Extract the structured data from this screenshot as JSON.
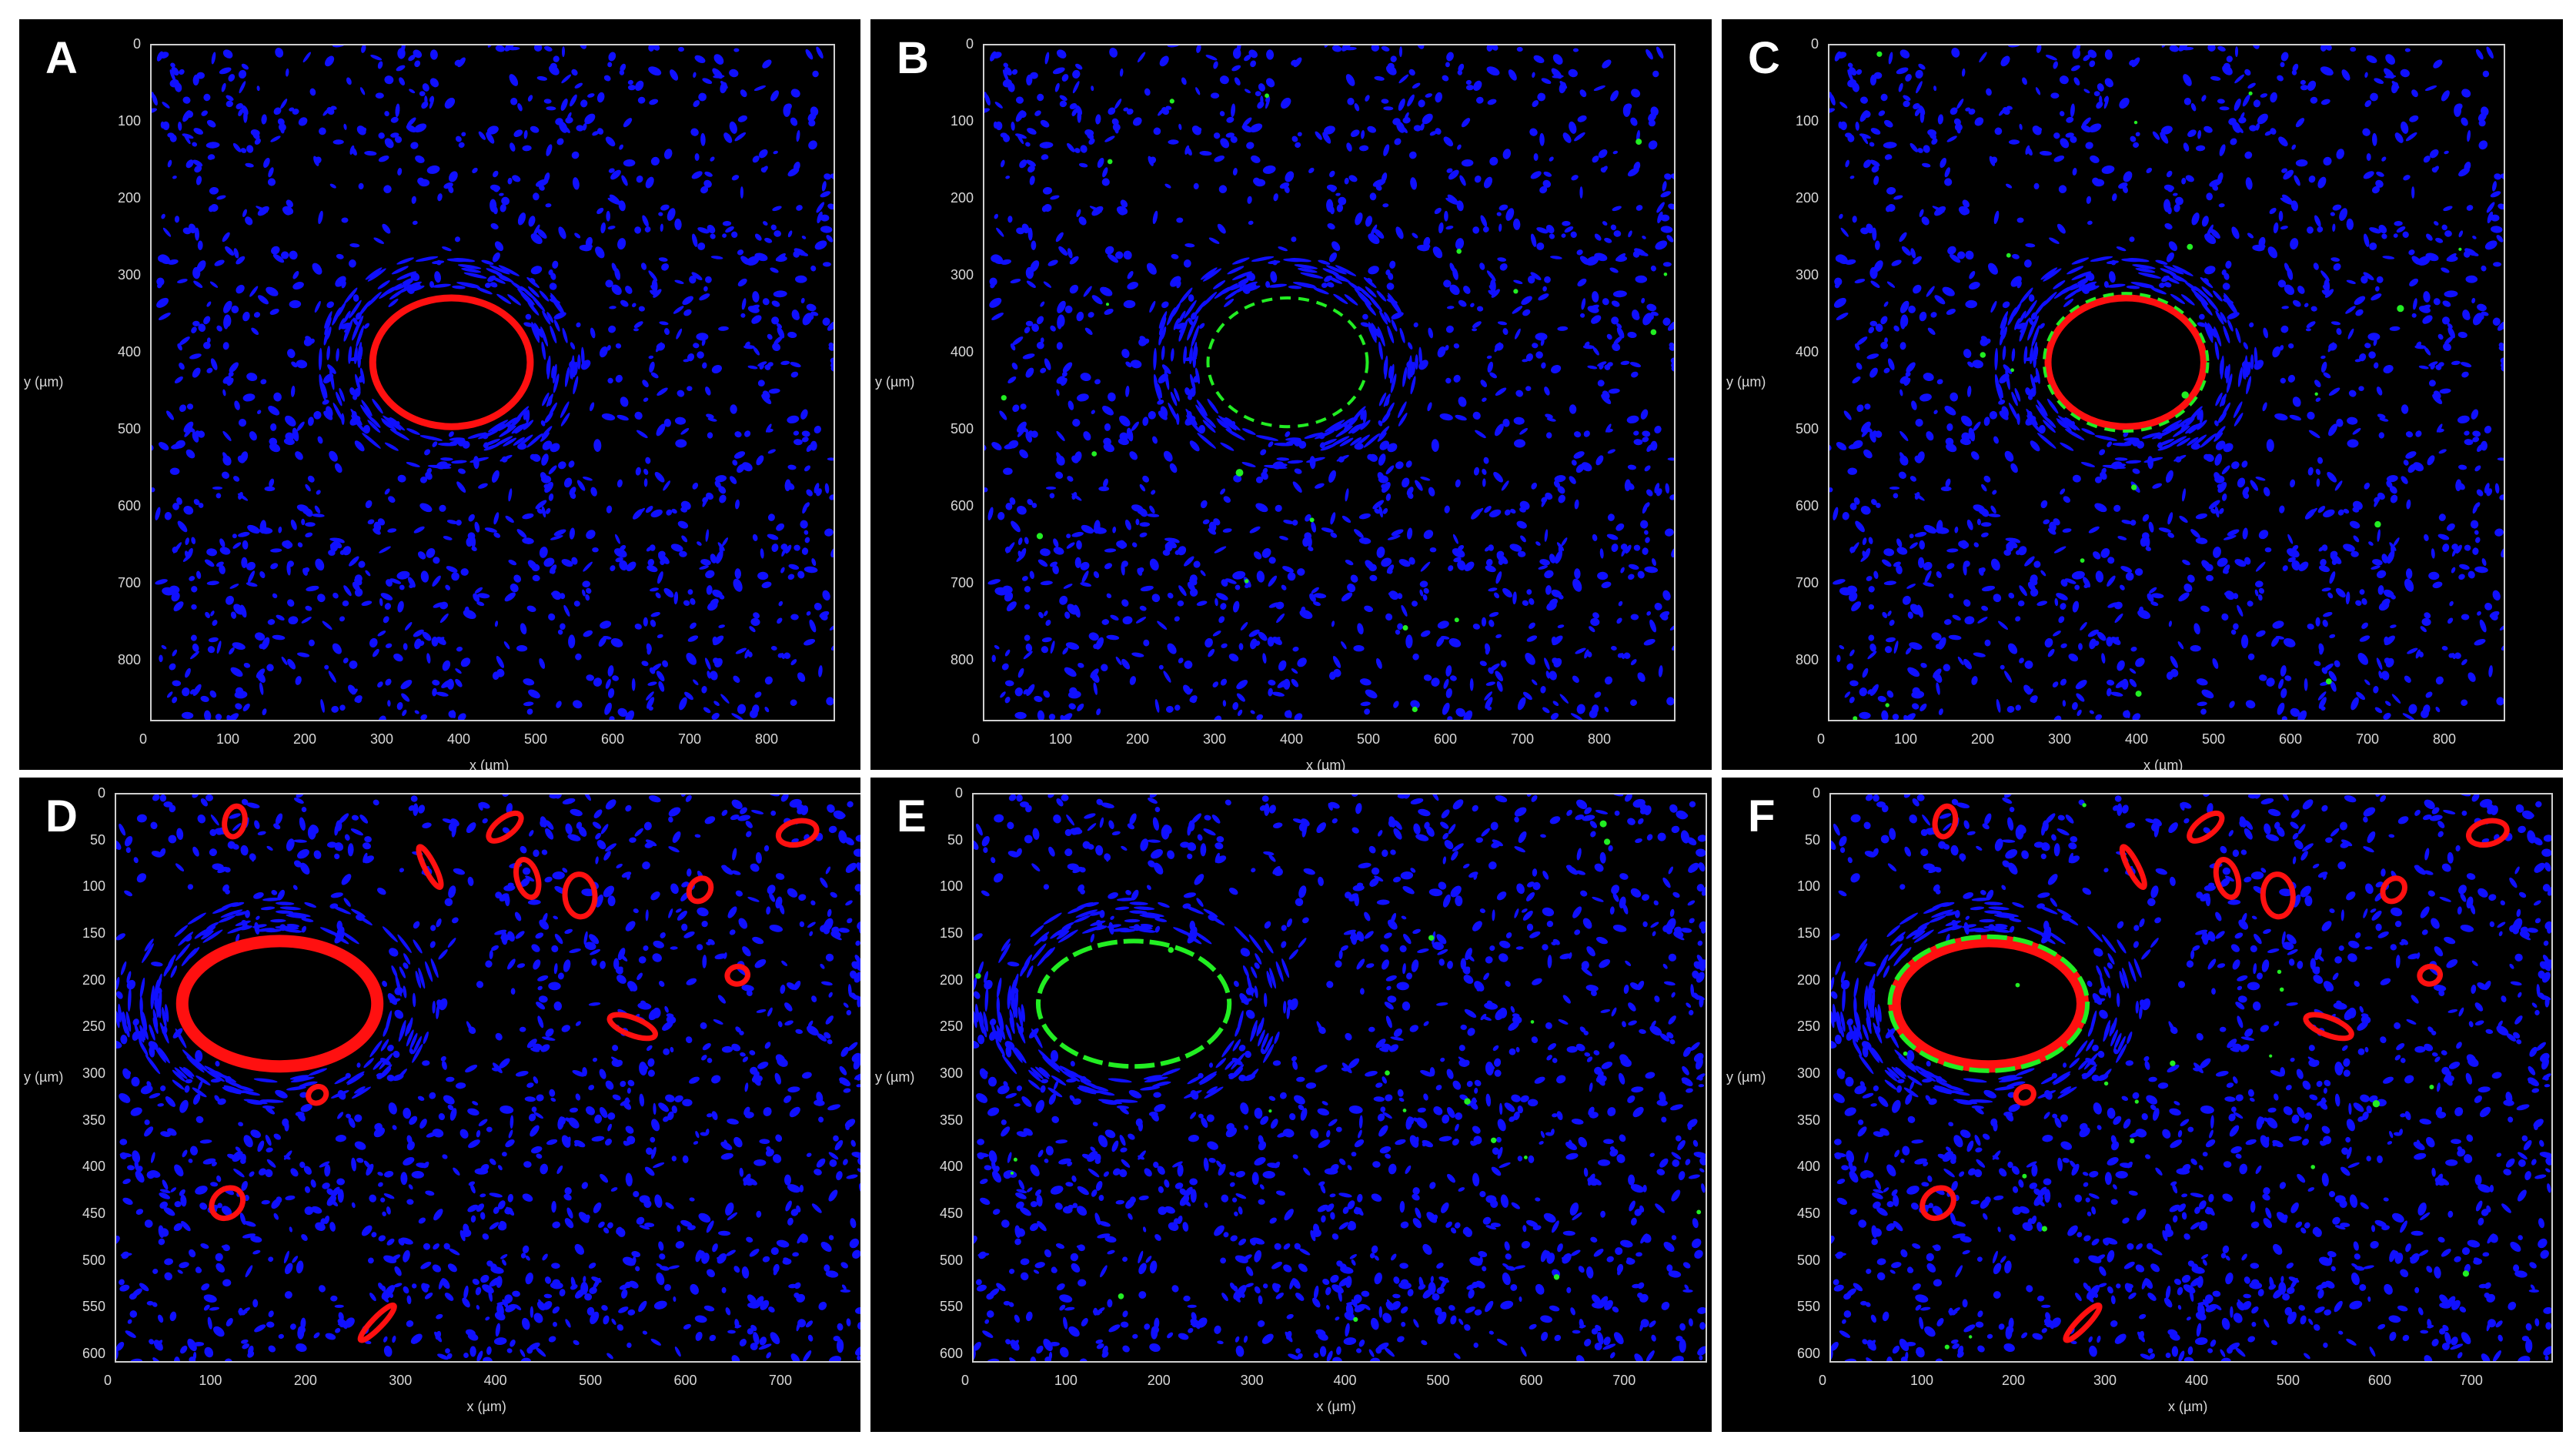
{
  "colors": {
    "nuclei": "#1010ff",
    "red_channel": "#ff1010",
    "green_channel": "#22ee22",
    "background": "#000000",
    "frame": "#cfcfcf"
  },
  "panels": [
    {
      "letter": "A",
      "channels": [
        "blue",
        "red"
      ],
      "xlabel": "x (µm)",
      "ylabel": "y (µm)",
      "xticks": [
        "0",
        "100",
        "200",
        "300",
        "400",
        "500",
        "600",
        "700",
        "800"
      ],
      "yticks": [
        "0",
        "100",
        "200",
        "300",
        "400",
        "500",
        "600",
        "700",
        "800"
      ]
    },
    {
      "letter": "B",
      "channels": [
        "blue",
        "green"
      ],
      "xlabel": "x (µm)",
      "ylabel": "y (µm)",
      "xticks": [
        "0",
        "100",
        "200",
        "300",
        "400",
        "500",
        "600",
        "700",
        "800"
      ],
      "yticks": [
        "0",
        "100",
        "200",
        "300",
        "400",
        "500",
        "600",
        "700",
        "800"
      ]
    },
    {
      "letter": "C",
      "channels": [
        "blue",
        "red",
        "green"
      ],
      "xlabel": "x (µm)",
      "ylabel": "y (µm)",
      "xticks": [
        "0",
        "100",
        "200",
        "300",
        "400",
        "500",
        "600",
        "700",
        "800"
      ],
      "yticks": [
        "0",
        "100",
        "200",
        "300",
        "400",
        "500",
        "600",
        "700",
        "800"
      ]
    },
    {
      "letter": "D",
      "channels": [
        "blue",
        "red"
      ],
      "xlabel": "x (µm)",
      "ylabel": "y (µm)",
      "xticks": [
        "0",
        "100",
        "200",
        "300",
        "400",
        "500",
        "600",
        "700"
      ],
      "yticks": [
        "0",
        "50",
        "100",
        "150",
        "200",
        "250",
        "300",
        "350",
        "400",
        "450",
        "500",
        "550",
        "600"
      ]
    },
    {
      "letter": "E",
      "channels": [
        "blue",
        "green"
      ],
      "xlabel": "x (µm)",
      "ylabel": "y (µm)",
      "xticks": [
        "0",
        "100",
        "200",
        "300",
        "400",
        "500",
        "600",
        "700"
      ],
      "yticks": [
        "0",
        "50",
        "100",
        "150",
        "200",
        "250",
        "300",
        "350",
        "400",
        "450",
        "500",
        "550",
        "600"
      ]
    },
    {
      "letter": "F",
      "channels": [
        "blue",
        "red",
        "green"
      ],
      "xlabel": "x (µm)",
      "ylabel": "y (µm)",
      "xticks": [
        "0",
        "100",
        "200",
        "300",
        "400",
        "500",
        "600",
        "700"
      ],
      "yticks": [
        "0",
        "50",
        "100",
        "150",
        "200",
        "250",
        "300",
        "350",
        "400",
        "450",
        "500",
        "550",
        "600"
      ]
    }
  ]
}
